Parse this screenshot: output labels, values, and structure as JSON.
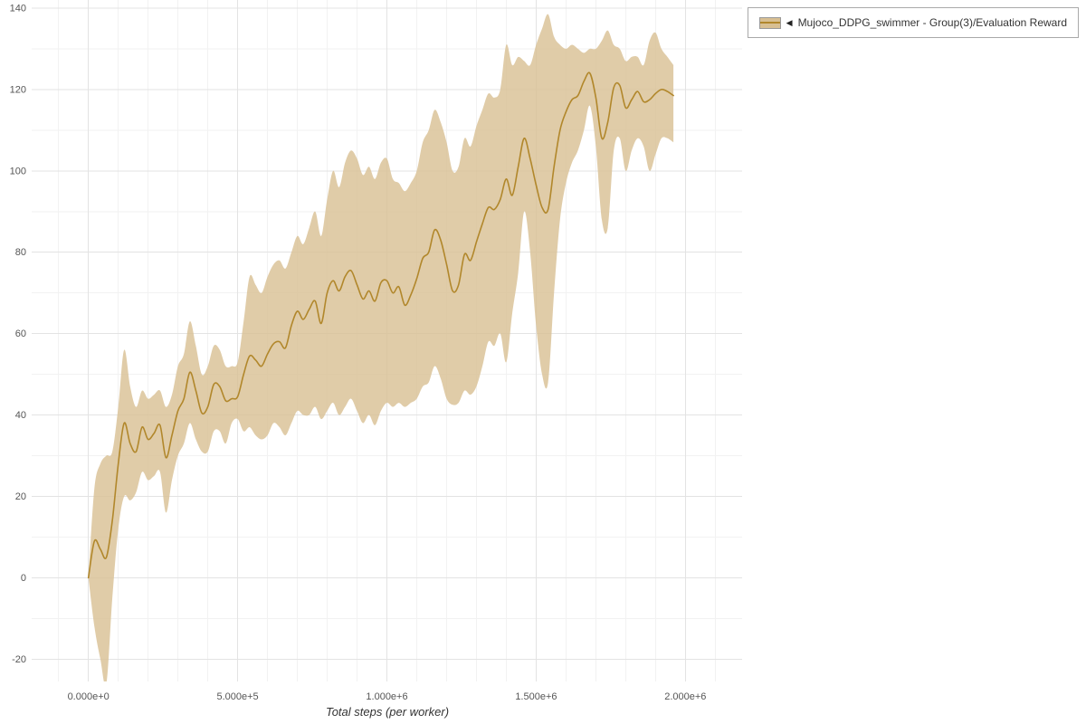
{
  "legend": {
    "glyph": "◀",
    "label": "Mujoco_DDPG_swimmer - Group(3)/Evaluation Reward"
  },
  "colors": {
    "line": "#b1872b",
    "band": "#d8bf92",
    "band_opacity": 0.8,
    "grid_major": "#e3e3e3",
    "grid_minor": "#f2f2f2",
    "tick_text": "#555555",
    "legend_border": "#a9a9a9"
  },
  "chart_data": {
    "type": "line",
    "title": "",
    "xlabel": "Total steps (per worker)",
    "ylabel": "",
    "grid": true,
    "legend_position": "top-right",
    "xlim": [
      -190000,
      2190000
    ],
    "ylim": [
      -25.5,
      142
    ],
    "x_minor_step": 100000,
    "y_minor_step": 10,
    "x_ticks": {
      "values": [
        0,
        500000,
        1000000,
        1500000,
        2000000
      ],
      "labels": [
        "0.000e+0",
        "5.000e+5",
        "1.000e+6",
        "1.500e+6",
        "2.000e+6"
      ]
    },
    "y_ticks": {
      "values": [
        -20,
        0,
        20,
        40,
        60,
        80,
        100,
        120,
        140
      ],
      "labels": [
        "-20",
        "0",
        "20",
        "40",
        "60",
        "80",
        "100",
        "120",
        "140"
      ]
    },
    "series": [
      {
        "name": "Mujoco_DDPG_swimmer - Group(3)/Evaluation Reward",
        "x": [
          0,
          20000,
          40000,
          60000,
          80000,
          100000,
          120000,
          140000,
          160000,
          180000,
          200000,
          220000,
          240000,
          260000,
          280000,
          300000,
          320000,
          340000,
          360000,
          380000,
          400000,
          420000,
          440000,
          460000,
          480000,
          500000,
          520000,
          540000,
          560000,
          580000,
          600000,
          620000,
          640000,
          660000,
          680000,
          700000,
          720000,
          740000,
          760000,
          780000,
          800000,
          820000,
          840000,
          860000,
          880000,
          900000,
          920000,
          940000,
          960000,
          980000,
          1000000,
          1020000,
          1040000,
          1060000,
          1080000,
          1100000,
          1120000,
          1140000,
          1160000,
          1180000,
          1200000,
          1220000,
          1240000,
          1260000,
          1280000,
          1300000,
          1320000,
          1340000,
          1360000,
          1380000,
          1400000,
          1420000,
          1440000,
          1460000,
          1480000,
          1500000,
          1520000,
          1540000,
          1560000,
          1580000,
          1600000,
          1620000,
          1640000,
          1660000,
          1680000,
          1700000,
          1720000,
          1740000,
          1760000,
          1780000,
          1800000,
          1820000,
          1840000,
          1860000,
          1880000,
          1900000,
          1920000,
          1940000,
          1960000
        ],
        "mean": [
          0,
          9,
          7,
          5,
          14,
          28,
          38,
          33,
          31,
          37,
          34,
          35.5,
          37.5,
          29.5,
          35,
          41,
          44,
          50.5,
          46,
          40.5,
          42,
          47.5,
          47,
          43.5,
          44,
          44.5,
          50,
          54.5,
          53.5,
          52,
          55,
          57.5,
          58,
          56.5,
          62,
          65.5,
          63.5,
          66,
          68,
          62.5,
          70,
          73,
          70.5,
          74,
          75.5,
          72,
          68.5,
          70.5,
          68,
          72.5,
          73,
          70,
          71.5,
          67,
          69.5,
          73.5,
          78.5,
          80,
          85.5,
          83,
          77,
          70.5,
          72,
          79.5,
          78,
          82.5,
          87,
          91,
          90.5,
          93,
          98,
          94,
          101,
          108,
          103,
          96.5,
          91,
          90.5,
          101,
          110,
          114.5,
          117.5,
          118.5,
          122,
          124,
          118,
          108,
          112,
          120.5,
          121,
          115.5,
          117.5,
          119.5,
          117,
          117.5,
          119,
          120,
          119.5,
          118.5
        ],
        "lo": [
          0,
          -12,
          -20,
          -26,
          -5,
          12,
          20,
          19,
          21,
          26,
          24,
          25,
          26,
          16,
          24,
          30,
          33,
          38,
          34,
          31,
          31,
          36,
          36,
          33,
          38,
          39,
          36,
          37,
          35,
          34,
          35,
          38,
          37,
          35,
          38,
          41,
          40,
          40,
          42,
          39,
          41,
          43,
          40,
          42,
          44,
          41,
          38,
          40,
          37.5,
          41,
          43,
          42,
          43,
          42,
          43,
          44,
          47,
          48,
          52,
          49,
          44,
          42.5,
          43,
          46,
          45,
          47,
          52,
          58,
          57,
          60,
          53,
          65,
          75,
          90,
          80,
          62,
          50,
          48,
          70,
          88,
          97,
          102,
          105,
          110,
          116,
          106,
          88,
          86,
          105,
          108,
          100,
          105,
          108,
          106,
          100,
          104,
          108,
          108,
          107
        ],
        "hi": [
          0,
          22,
          28,
          30,
          31,
          42,
          56,
          47,
          42,
          46,
          44,
          45,
          46,
          42,
          45,
          52,
          55,
          63,
          57,
          50,
          52,
          57,
          56,
          52,
          52,
          53,
          63,
          74,
          72,
          70,
          74,
          77,
          78,
          76,
          80,
          84,
          82,
          86,
          90,
          84,
          93,
          100,
          96,
          102,
          105,
          103,
          99,
          101,
          98,
          102,
          103,
          98,
          97,
          95,
          97,
          100,
          107,
          110,
          115,
          112,
          107,
          100,
          101,
          108,
          106,
          111,
          115,
          119,
          118,
          120,
          131,
          126,
          128,
          127,
          126,
          131,
          135,
          138.5,
          133,
          131,
          130,
          131,
          130,
          129,
          130,
          130,
          132,
          134.5,
          131,
          130,
          127,
          128,
          128,
          126,
          132,
          134,
          130,
          128,
          126
        ]
      }
    ]
  }
}
